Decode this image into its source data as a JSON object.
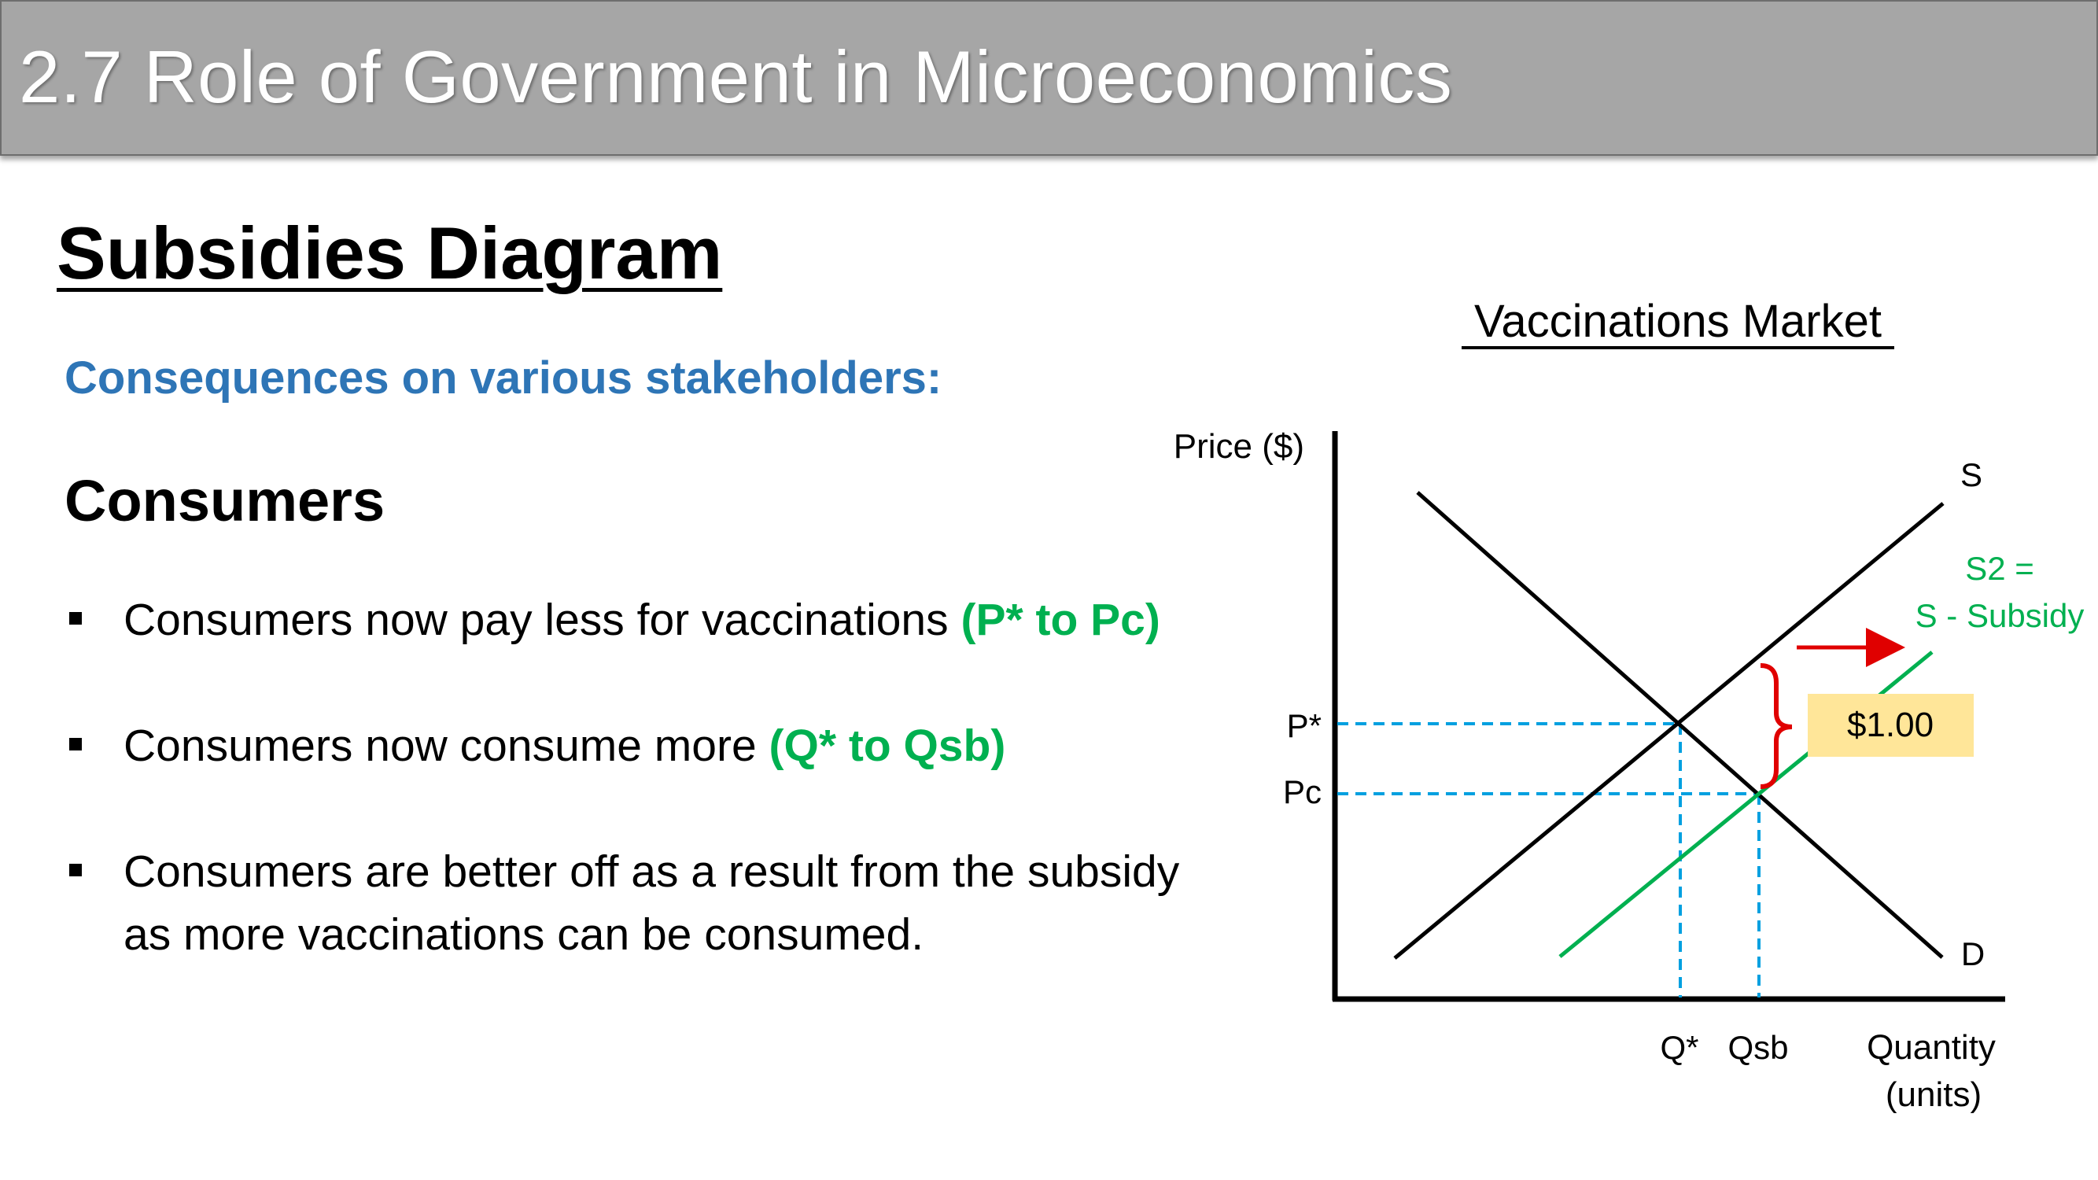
{
  "header": {
    "title": "2.7 Role of Government in Microeconomics"
  },
  "section_title": "Subsidies Diagram",
  "subheading": "Consequences on various stakeholders:",
  "stakeholder": "Consumers",
  "bullets": [
    {
      "text": "Consumers now pay less for vaccinations ",
      "highlight": "(P* to Pc)"
    },
    {
      "text": "Consumers now consume more ",
      "highlight": "(Q* to Qsb)"
    },
    {
      "text": "Consumers are better off as a result from the subsidy as more vaccinations can be consumed.",
      "highlight": ""
    }
  ],
  "diagram": {
    "title": "Vaccinations Market",
    "y_axis_label": "Price ($)",
    "x_axis_label_line1": "Quantity",
    "x_axis_label_line2": "(units)",
    "supply_label": "S",
    "demand_label": "D",
    "new_supply_label_line1": "S2 =",
    "new_supply_label_line2": "S - Subsidy",
    "price_equilibrium_label": "P*",
    "price_consumer_label": "Pc",
    "quantity_equilibrium_label": "Q*",
    "quantity_subsidy_label": "Qsb",
    "subsidy_amount": "$1.00",
    "colors": {
      "supply": "#000000",
      "demand": "#000000",
      "new_supply": "#00b050",
      "guides": "#00a0e0",
      "arrow": "#e00000",
      "brace": "#e00000",
      "subsidy_box": "#ffe699"
    }
  }
}
